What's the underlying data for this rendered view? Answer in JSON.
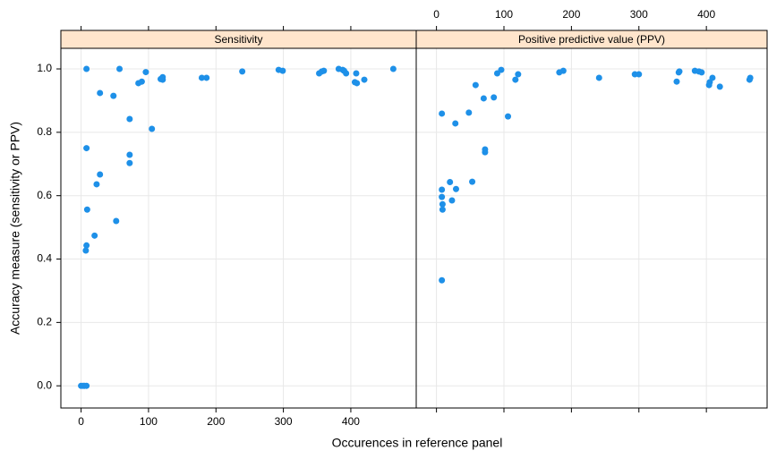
{
  "chart_data": [
    {
      "type": "scatter",
      "title": "Sensitivity",
      "xlabel": "Occurences in reference panel",
      "ylabel": "Accuracy measure (sensitivity or PPV)",
      "color": "#1e90e8",
      "grid": true,
      "xlim": [
        -30,
        497
      ],
      "ylim": [
        -0.07,
        1.065
      ],
      "xticks": [
        0,
        100,
        200,
        300,
        400
      ],
      "yticks": [
        {
          "value": 0,
          "label": "0.0"
        },
        {
          "value": 0.2,
          "label": "0.2"
        },
        {
          "value": 0.4,
          "label": "0.4"
        },
        {
          "value": 0.6,
          "label": "0.6"
        },
        {
          "value": 0.8,
          "label": "0.8"
        },
        {
          "value": 1,
          "label": "1.0"
        }
      ],
      "x": [
        0,
        3,
        5,
        8,
        8,
        8,
        9,
        8,
        7,
        20,
        23,
        28,
        28,
        48,
        52,
        57,
        72,
        72,
        72,
        85,
        90,
        96,
        105,
        118,
        121,
        121,
        179,
        186,
        239,
        293,
        299,
        353,
        357,
        360,
        382,
        388,
        390,
        393,
        408,
        406,
        409,
        420,
        463
      ],
      "values": [
        0,
        0,
        0,
        0,
        1.0,
        0.75,
        0.556,
        0.443,
        0.427,
        0.474,
        0.636,
        0.667,
        0.924,
        0.915,
        0.52,
        1.0,
        0.842,
        0.729,
        0.703,
        0.955,
        0.96,
        0.99,
        0.811,
        0.968,
        0.974,
        0.966,
        0.972,
        0.972,
        0.992,
        0.997,
        0.994,
        0.986,
        0.992,
        0.994,
        1.0,
        0.997,
        0.994,
        0.986,
        0.986,
        0.958,
        0.955,
        0.966,
        1.0
      ]
    },
    {
      "type": "scatter",
      "title": "Positive predictive value (PPV)",
      "color": "#1e90e8",
      "grid": true,
      "xlim": [
        -30,
        490
      ],
      "xticks": [
        0,
        100,
        200,
        300,
        400
      ],
      "x": [
        8,
        8,
        8,
        8,
        9,
        9,
        20,
        23,
        28,
        29,
        48,
        53,
        58,
        70,
        72,
        72,
        85,
        90,
        96,
        106,
        117,
        121,
        182,
        188,
        241,
        294,
        300,
        356,
        359,
        360,
        383,
        389,
        393,
        404,
        405,
        409,
        420,
        465,
        464
      ],
      "values": [
        0.859,
        0.333,
        0.619,
        0.596,
        0.573,
        0.556,
        0.643,
        0.585,
        0.828,
        0.621,
        0.862,
        0.644,
        0.949,
        0.907,
        0.746,
        0.737,
        0.91,
        0.986,
        0.997,
        0.85,
        0.966,
        0.983,
        0.989,
        0.994,
        0.972,
        0.983,
        0.983,
        0.96,
        0.989,
        0.992,
        0.994,
        0.992,
        0.989,
        0.949,
        0.958,
        0.972,
        0.944,
        0.972,
        0.966
      ]
    }
  ]
}
